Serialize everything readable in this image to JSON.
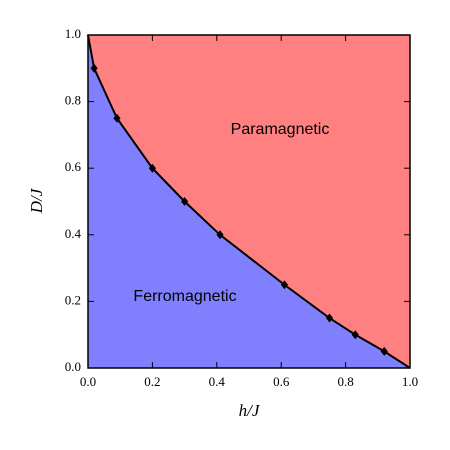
{
  "chart_data": {
    "type": "phase",
    "xlabel": "h/J",
    "ylabel": "D/J",
    "x": [
      0.0,
      0.019,
      0.09,
      0.2,
      0.3,
      0.41,
      0.61,
      0.75,
      0.83,
      0.92,
      1.0
    ],
    "series": [
      {
        "values": [
          1.0,
          0.9,
          0.75,
          0.6,
          0.5,
          0.4,
          0.25,
          0.15,
          0.1,
          0.05,
          0.0
        ],
        "color": "#000000"
      }
    ],
    "regions": [
      {
        "label": "Ferromagnetic",
        "color": "#8080ff"
      },
      {
        "label": "Paramagnetic",
        "color": "#ff8080"
      }
    ],
    "xlim": [
      0.0,
      1.0
    ],
    "ylim": [
      0.0,
      1.0
    ],
    "xticks": [
      {
        "value": 0,
        "label": "0.0"
      },
      {
        "value": 0.2,
        "label": "0.2"
      },
      {
        "value": 0.4,
        "label": "0.4"
      },
      {
        "value": 0.6,
        "label": "0.6"
      },
      {
        "value": 0.8,
        "label": "0.8"
      },
      {
        "value": 1,
        "label": "1.0"
      }
    ],
    "yticks": [
      {
        "value": 0,
        "label": "0.0"
      },
      {
        "value": 0.2,
        "label": "0.2"
      },
      {
        "value": 0.4,
        "label": "0.4"
      },
      {
        "value": 0.6,
        "label": "0.6"
      },
      {
        "value": 0.8,
        "label": "0.8"
      },
      {
        "value": 1,
        "label": "1.0"
      }
    ]
  }
}
